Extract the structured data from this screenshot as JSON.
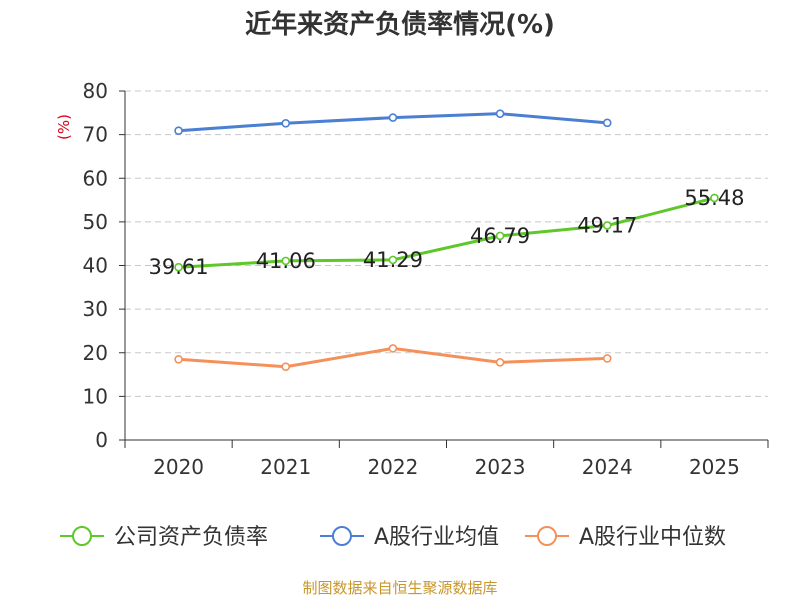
{
  "chart_data": {
    "type": "line",
    "title": "近年来资产负债率情况(%)",
    "ylabel": "(%)",
    "xlabel": "",
    "ylim": [
      0,
      80
    ],
    "yticks": [
      0,
      10,
      20,
      30,
      40,
      50,
      60,
      70,
      80
    ],
    "categories": [
      "2020",
      "2021",
      "2022",
      "2023",
      "2024",
      "2025"
    ],
    "grid": true,
    "legend_position": "bottom",
    "series": [
      {
        "name": "公司资产负债率",
        "color": "#5ec72a",
        "values": [
          39.61,
          41.06,
          41.29,
          46.79,
          49.17,
          55.48
        ],
        "labels": [
          "39.61",
          "41.06",
          "41.29",
          "46.79",
          "49.17",
          "55.48"
        ]
      },
      {
        "name": "A股行业均值",
        "color": "#4a7fd4",
        "values": [
          70.9,
          72.6,
          73.9,
          74.8,
          72.7,
          null
        ]
      },
      {
        "name": "A股行业中位数",
        "color": "#f5905a",
        "values": [
          18.5,
          16.8,
          21.0,
          17.8,
          18.7,
          null
        ]
      }
    ]
  },
  "footer": {
    "source": "制图数据来自恒生聚源数据库"
  }
}
